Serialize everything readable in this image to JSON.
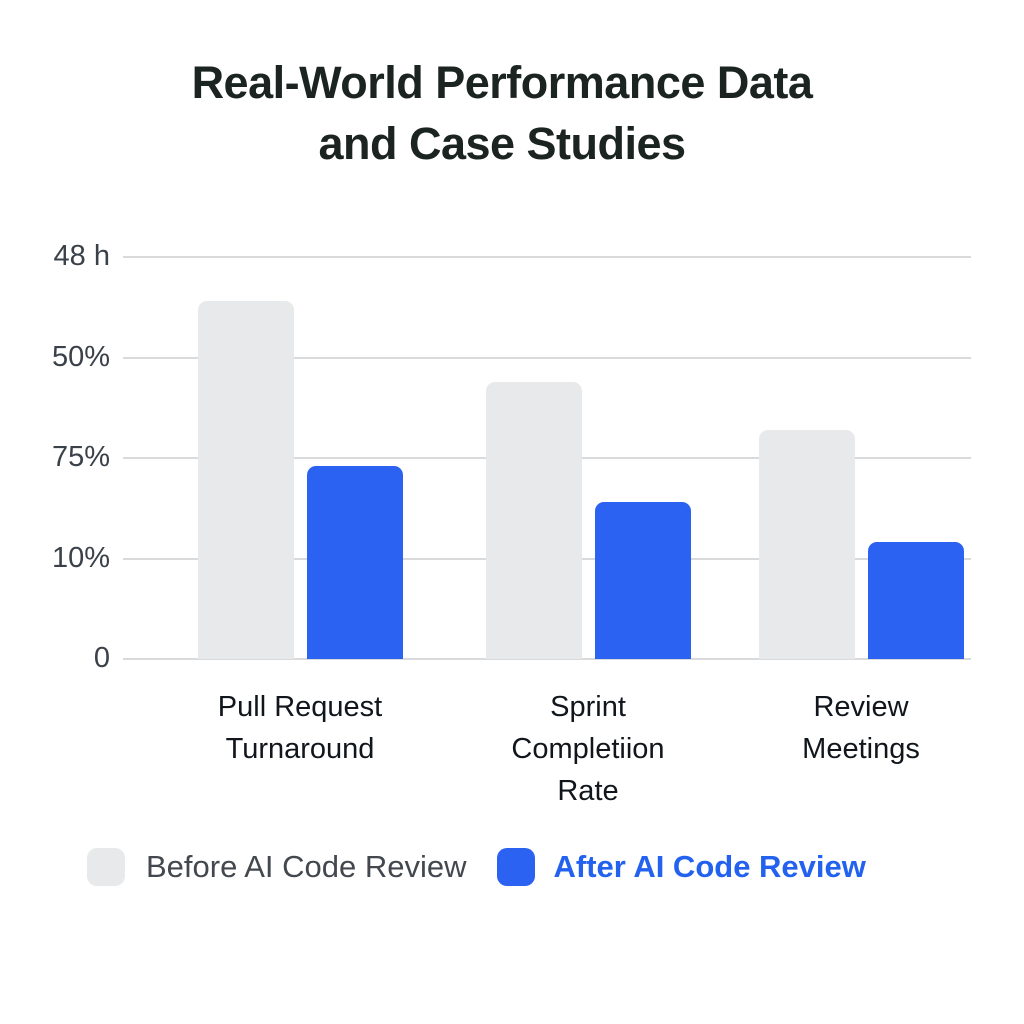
{
  "title": {
    "line1": "Real-World Performance Data",
    "line2": "and Case Studies"
  },
  "chart_data": {
    "type": "bar",
    "categories": [
      "Pull Request Turnaround",
      "Sprint Completiion Rate",
      "Review Meetings"
    ],
    "category_label_lines": [
      [
        "Pull Request",
        "Turnaround"
      ],
      [
        "Sprint",
        "Completiion",
        "Rate"
      ],
      [
        "Review",
        "Meetings"
      ]
    ],
    "series": [
      {
        "name": "Before AI Code Review",
        "color": "#e8e9ea",
        "values": [
          89,
          69,
          57
        ]
      },
      {
        "name": "After AI Code Review",
        "color": "#2b62f1",
        "values": [
          48,
          39,
          29
        ]
      }
    ],
    "value_scale": "percent of top gridline height (top '48 h' gridline = 100, baseline = 0)",
    "y_ticks_bottom_to_top": [
      "0",
      "10%",
      "75%",
      "50%",
      "48 h"
    ],
    "ylim": [
      0,
      100
    ],
    "grid": true,
    "legend_position": "bottom"
  },
  "colors": {
    "background": "#ffffff",
    "title_text": "#1b2420",
    "axis_tick_text": "#3a4149",
    "category_label_text": "#10161c",
    "gridline": "#d9dadc",
    "before_fill": "#e8e9ea",
    "after_fill": "#2b62f1",
    "legend_before_text": "#43484e",
    "legend_after_text": "#2262ef"
  }
}
